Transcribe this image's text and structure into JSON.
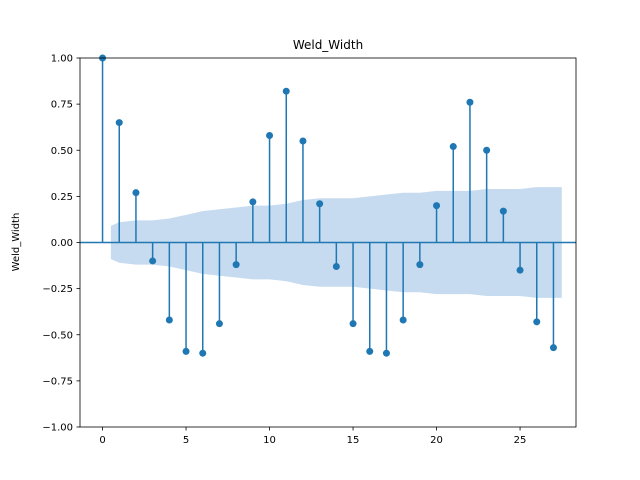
{
  "chart_data": {
    "type": "stem",
    "title": "Weld_Width",
    "xlabel": "",
    "ylabel": "Weld_Width",
    "xlim": [
      -1.35,
      28.35
    ],
    "ylim": [
      -1.0,
      1.0
    ],
    "x_ticks": [
      0,
      5,
      10,
      15,
      20,
      25
    ],
    "y_ticks": [
      -1.0,
      -0.75,
      -0.5,
      -0.25,
      0.0,
      0.25,
      0.5,
      0.75,
      1.0
    ],
    "y_tick_labels": [
      "−1.00",
      "−0.75",
      "−0.50",
      "−0.25",
      "0.00",
      "0.25",
      "0.50",
      "0.75",
      "1.00"
    ],
    "grid": false,
    "lags": [
      0,
      1,
      2,
      3,
      4,
      5,
      6,
      7,
      8,
      9,
      10,
      11,
      12,
      13,
      14,
      15,
      16,
      17,
      18,
      19,
      20,
      21,
      22,
      23,
      24,
      25,
      26,
      27
    ],
    "values": [
      1.0,
      0.65,
      0.27,
      -0.1,
      -0.42,
      -0.59,
      -0.6,
      -0.44,
      -0.12,
      0.22,
      0.58,
      0.82,
      0.55,
      0.21,
      -0.13,
      -0.44,
      -0.59,
      -0.6,
      -0.42,
      -0.12,
      0.2,
      0.52,
      0.76,
      0.5,
      0.17,
      -0.15,
      -0.43,
      -0.57
    ],
    "confidence_band": {
      "x": [
        0.5,
        1,
        2,
        3,
        4,
        5,
        6,
        7,
        8,
        9,
        10,
        11,
        12,
        13,
        14,
        15,
        16,
        17,
        18,
        19,
        20,
        21,
        22,
        23,
        24,
        25,
        26,
        27,
        27.5
      ],
      "upper": [
        0.09,
        0.11,
        0.12,
        0.12,
        0.13,
        0.15,
        0.17,
        0.18,
        0.19,
        0.2,
        0.2,
        0.21,
        0.23,
        0.24,
        0.24,
        0.24,
        0.25,
        0.26,
        0.27,
        0.27,
        0.28,
        0.28,
        0.28,
        0.29,
        0.29,
        0.29,
        0.3,
        0.3,
        0.3
      ],
      "lower": [
        -0.09,
        -0.11,
        -0.12,
        -0.12,
        -0.13,
        -0.15,
        -0.17,
        -0.18,
        -0.19,
        -0.2,
        -0.2,
        -0.21,
        -0.23,
        -0.24,
        -0.24,
        -0.24,
        -0.25,
        -0.26,
        -0.27,
        -0.27,
        -0.28,
        -0.28,
        -0.28,
        -0.29,
        -0.29,
        -0.29,
        -0.3,
        -0.3,
        -0.3
      ]
    },
    "colors": {
      "stem": "#1f77b4",
      "band": "#c6dbef",
      "axis": "#000000"
    }
  }
}
